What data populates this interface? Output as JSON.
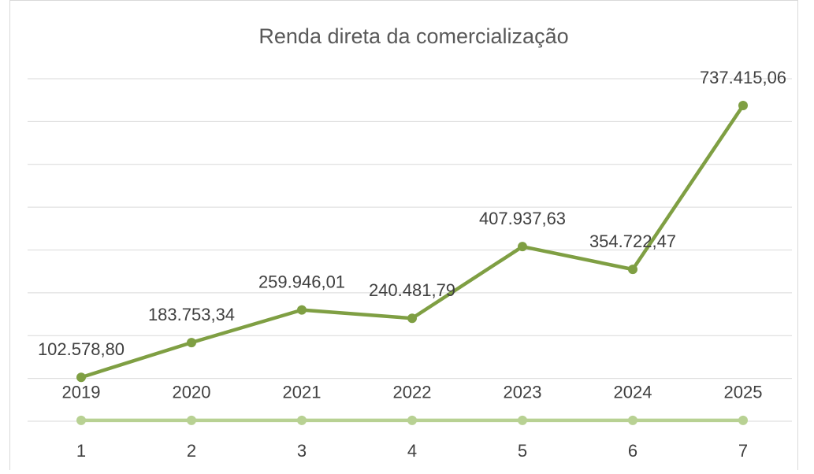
{
  "chart_data": {
    "type": "line",
    "title": "Renda direta da comercialização",
    "categories": [
      "1",
      "2",
      "3",
      "4",
      "5",
      "6",
      "7"
    ],
    "series": [
      {
        "color": "#7f9f43",
        "values": [
          102578.8,
          183753.34,
          259946.01,
          240481.79,
          407937.63,
          354722.47,
          737415.06
        ],
        "value_labels": [
          "102.578,80",
          "183.753,34",
          "259.946,01",
          "240.481,79",
          "407.937,63",
          "354.722,47",
          "737.415,06"
        ]
      },
      {
        "color": "#b8d193",
        "values": [
          2019,
          2020,
          2021,
          2022,
          2023,
          2024,
          2025
        ]
      }
    ],
    "ylim": [
      0,
      800000
    ],
    "yticks": [
      0,
      100000,
      200000,
      300000,
      400000,
      500000,
      600000,
      700000,
      800000
    ],
    "grid": true
  }
}
